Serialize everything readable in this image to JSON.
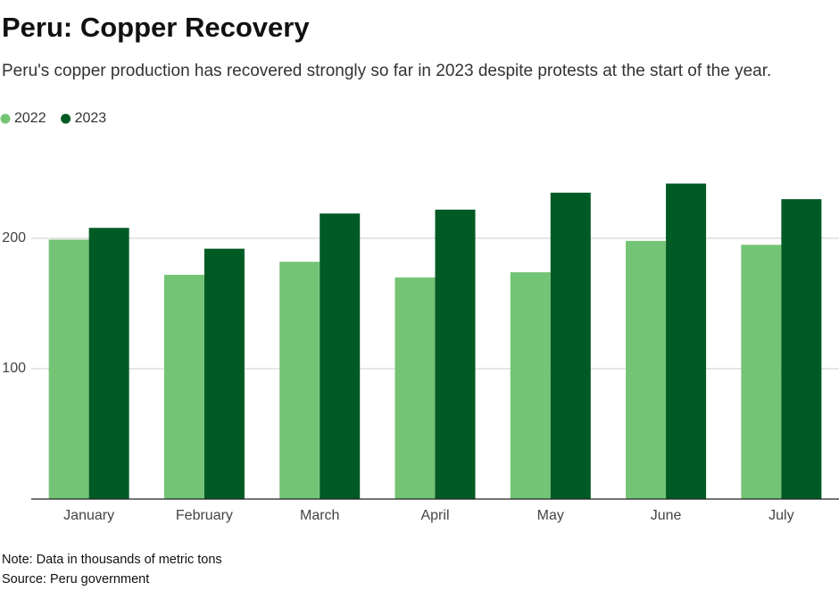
{
  "chart_data": {
    "type": "bar",
    "title": "Peru: Copper Recovery",
    "subtitle": "Peru's copper production has recovered strongly so far in 2023 despite protests at the start of the year.",
    "categories": [
      "January",
      "February",
      "March",
      "April",
      "May",
      "June",
      "July"
    ],
    "series": [
      {
        "name": "2022",
        "color": "#74c476",
        "values": [
          199,
          172,
          182,
          170,
          174,
          198,
          195
        ]
      },
      {
        "name": "2023",
        "color": "#005a24",
        "values": [
          208,
          192,
          219,
          222,
          235,
          242,
          230
        ]
      }
    ],
    "ylim": [
      0,
      265
    ],
    "yticks": [
      100,
      200
    ],
    "grid": true,
    "note": "Note: Data in thousands of metric tons",
    "source": "Source: Peru government"
  }
}
